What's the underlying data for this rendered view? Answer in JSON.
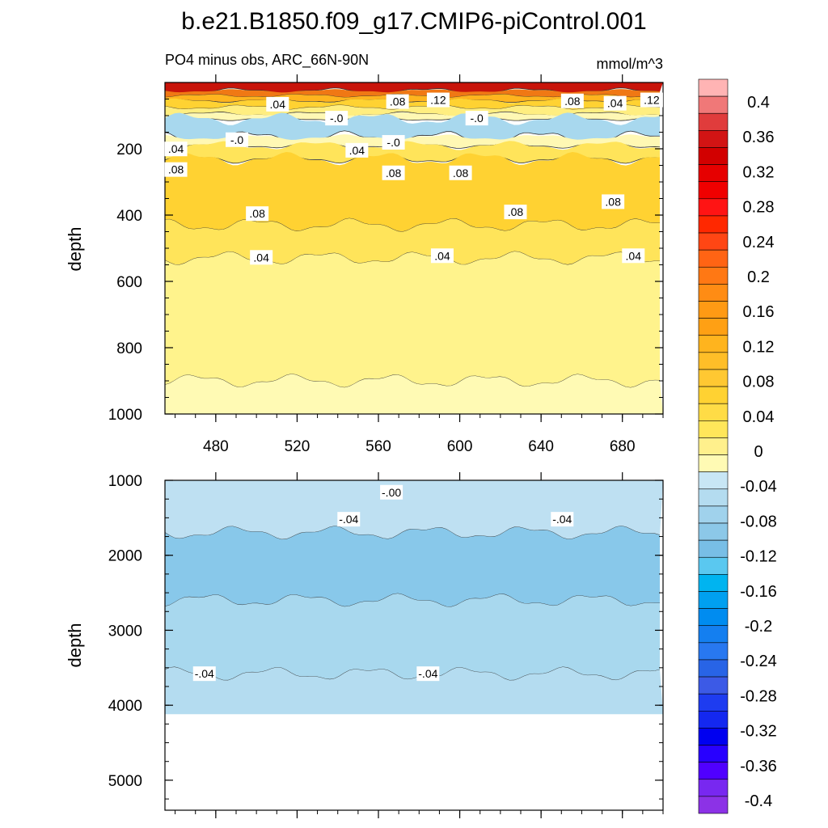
{
  "title": "b.e21.B1850.f09_g17.CMIP6-piControl.001",
  "chart_data": [
    {
      "type": "contour",
      "panel": "upper",
      "left_label": "PO4 minus obs, ARC_66N-90N",
      "right_label": "mmol/m^3",
      "ylabel": "depth",
      "xlabel": "",
      "xlim": [
        455,
        700
      ],
      "ylim": [
        1000,
        0
      ],
      "y_reversed": true,
      "xticks": [
        480,
        520,
        560,
        600,
        640,
        680
      ],
      "yticks": [
        200,
        400,
        600,
        800,
        1000
      ],
      "layers": [
        {
          "depth_top": 0,
          "depth_bottom": 25,
          "value": 0.3,
          "color": "#c8140a"
        },
        {
          "depth_top": 25,
          "depth_bottom": 40,
          "value": 0.2,
          "color": "#f07814"
        },
        {
          "depth_top": 40,
          "depth_bottom": 55,
          "value": 0.12,
          "color": "#ffb41e"
        },
        {
          "depth_top": 55,
          "depth_bottom": 75,
          "value": 0.08,
          "color": "#ffd232"
        },
        {
          "depth_top": 75,
          "depth_bottom": 95,
          "value": 0.04,
          "color": "#ffee80"
        },
        {
          "depth_top": 95,
          "depth_bottom": 110,
          "value": 0.02,
          "color": "#fff8b4"
        },
        {
          "depth_top": 110,
          "depth_bottom": 165,
          "value": -0.02,
          "color": "#a8d8ee"
        },
        {
          "depth_top": 165,
          "depth_bottom": 190,
          "value": 0.02,
          "color": "#fff8b4"
        },
        {
          "depth_top": 190,
          "depth_bottom": 230,
          "value": 0.05,
          "color": "#ffe45a"
        },
        {
          "depth_top": 230,
          "depth_bottom": 430,
          "value": 0.09,
          "color": "#ffd232"
        },
        {
          "depth_top": 430,
          "depth_bottom": 530,
          "value": 0.06,
          "color": "#ffe45a"
        },
        {
          "depth_top": 530,
          "depth_bottom": 900,
          "value": 0.03,
          "color": "#fff38c"
        },
        {
          "depth_top": 900,
          "depth_bottom": 1000,
          "value": 0.01,
          "color": "#fffab4"
        }
      ],
      "contour_labels": [
        {
          "text": ".04",
          "x": 510,
          "y": 68
        },
        {
          "text": ".08",
          "x": 569,
          "y": 60
        },
        {
          "text": ".12",
          "x": 589,
          "y": 55
        },
        {
          "text": ".08",
          "x": 655,
          "y": 58
        },
        {
          "text": ".04",
          "x": 676,
          "y": 65
        },
        {
          "text": ".12",
          "x": 694,
          "y": 55
        },
        {
          "text": "-.0",
          "x": 539,
          "y": 110
        },
        {
          "text": "-.0",
          "x": 608,
          "y": 110
        },
        {
          "text": "-.0",
          "x": 490,
          "y": 175
        },
        {
          "text": "-.0",
          "x": 567,
          "y": 183
        },
        {
          "text": ".04",
          "x": 460,
          "y": 203
        },
        {
          "text": ".04",
          "x": 549,
          "y": 207
        },
        {
          "text": ".08",
          "x": 460,
          "y": 265
        },
        {
          "text": ".08",
          "x": 567,
          "y": 275
        },
        {
          "text": ".08",
          "x": 600,
          "y": 275
        },
        {
          "text": ".08",
          "x": 500,
          "y": 398
        },
        {
          "text": ".08",
          "x": 627,
          "y": 393
        },
        {
          "text": ".08",
          "x": 675,
          "y": 362
        },
        {
          "text": ".04",
          "x": 502,
          "y": 530
        },
        {
          "text": ".04",
          "x": 591,
          "y": 525
        },
        {
          "text": ".04",
          "x": 685,
          "y": 525
        }
      ]
    },
    {
      "type": "contour",
      "panel": "lower",
      "ylabel": "depth",
      "xlabel": "",
      "xlim": [
        455,
        700
      ],
      "ylim": [
        5400,
        1000
      ],
      "y_reversed": true,
      "yticks": [
        1000,
        2000,
        3000,
        4000,
        5000
      ],
      "bottom_depth": 4120,
      "layers": [
        {
          "depth_top": 1000,
          "depth_bottom": 1700,
          "value": -0.03,
          "color": "#bee0f2"
        },
        {
          "depth_top": 1700,
          "depth_bottom": 2600,
          "value": -0.07,
          "color": "#88c8ea"
        },
        {
          "depth_top": 2600,
          "depth_bottom": 3580,
          "value": -0.05,
          "color": "#a8d8ee"
        },
        {
          "depth_top": 3580,
          "depth_bottom": 4120,
          "value": -0.04,
          "color": "#b4dcf0"
        }
      ],
      "contour_labels": [
        {
          "text": "-.00",
          "x": 566,
          "y": 1170
        },
        {
          "text": "-.04",
          "x": 545,
          "y": 1530
        },
        {
          "text": "-.04",
          "x": 650,
          "y": 1530
        },
        {
          "text": "-.04",
          "x": 474,
          "y": 3590
        },
        {
          "text": "-.04",
          "x": 584,
          "y": 3590
        }
      ]
    }
  ],
  "colorbar": {
    "labels": [
      "0.4",
      "0.36",
      "0.32",
      "0.28",
      "0.24",
      "0.2",
      "0.16",
      "0.12",
      "0.08",
      "0.04",
      "0",
      "-0.04",
      "-0.08",
      "-0.12",
      "-0.16",
      "-0.2",
      "-0.24",
      "-0.28",
      "-0.32",
      "-0.36",
      "-0.4"
    ],
    "colors": [
      "#ffb4b4",
      "#f07878",
      "#e03c3c",
      "#d21414",
      "#d20000",
      "#e60000",
      "#f00000",
      "#ff1414",
      "#ff2800",
      "#ff4614",
      "#ff6414",
      "#ff7814",
      "#ff8c14",
      "#ff9a14",
      "#ffa014",
      "#ffb41e",
      "#ffbe28",
      "#ffc832",
      "#ffd232",
      "#ffdc46",
      "#ffe65a",
      "#fff08c",
      "#fffab4",
      "#c8e6f5",
      "#b4dcf0",
      "#a0d2ec",
      "#8cc8e8",
      "#78bee6",
      "#5ac8f0",
      "#00b4f0",
      "#00a0f0",
      "#008cf0",
      "#147ff0",
      "#2878f0",
      "#2864e6",
      "#3c5ae6",
      "#1e3cf0",
      "#1428f0",
      "#0000f0",
      "#2800ff",
      "#5000ff",
      "#7828f0",
      "#8c32e6"
    ]
  }
}
